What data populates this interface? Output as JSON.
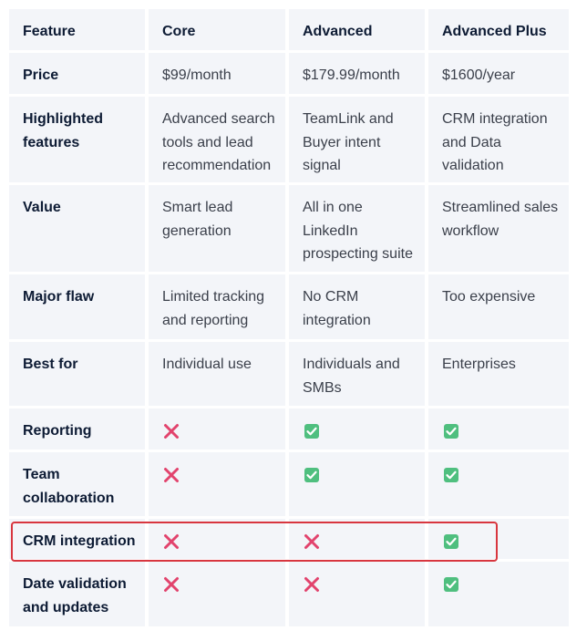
{
  "table": {
    "header": [
      "Feature",
      "Core",
      "Advanced",
      "Advanced Plus"
    ],
    "rows": [
      [
        "Price",
        "$99/month",
        "$179.99/month",
        "$1600/year"
      ],
      [
        "Highlighted features",
        "Advanced search tools and lead recommendation",
        "TeamLink and Buyer intent signal",
        "CRM integration and Data validation"
      ],
      [
        "Value",
        "Smart lead generation",
        "All in one LinkedIn prospecting suite",
        "Streamlined sales workflow"
      ],
      [
        "Major flaw",
        "Limited tracking and reporting",
        "No CRM integration",
        "Too expensive"
      ],
      [
        "Best for",
        "Individual use",
        "Individuals and SMBs",
        "Enterprises"
      ],
      [
        "Reporting",
        false,
        true,
        true
      ],
      [
        "Team collaboration",
        false,
        true,
        true
      ],
      [
        "CRM integration",
        false,
        false,
        true
      ],
      [
        "Date validation and updates",
        false,
        false,
        true
      ]
    ]
  }
}
